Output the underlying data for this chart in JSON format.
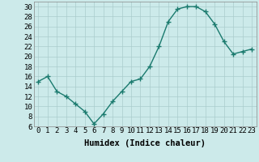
{
  "x": [
    0,
    1,
    2,
    3,
    4,
    5,
    6,
    7,
    8,
    9,
    10,
    11,
    12,
    13,
    14,
    15,
    16,
    17,
    18,
    19,
    20,
    21,
    22,
    23
  ],
  "y": [
    15,
    16,
    13,
    12,
    10.5,
    9,
    6.5,
    8.5,
    11,
    13,
    15,
    15.5,
    18,
    22,
    27,
    29.5,
    30,
    30,
    29,
    26.5,
    23,
    20.5,
    21,
    21.5
  ],
  "line_color": "#1a7a6e",
  "marker_color": "#1a7a6e",
  "bg_color": "#cceaea",
  "grid_color": "#aacccc",
  "xlabel": "Humidex (Indice chaleur)",
  "xlim": [
    -0.5,
    23.5
  ],
  "ylim": [
    6,
    31
  ],
  "yticks": [
    6,
    8,
    10,
    12,
    14,
    16,
    18,
    20,
    22,
    24,
    26,
    28,
    30
  ],
  "xticks": [
    0,
    1,
    2,
    3,
    4,
    5,
    6,
    7,
    8,
    9,
    10,
    11,
    12,
    13,
    14,
    15,
    16,
    17,
    18,
    19,
    20,
    21,
    22,
    23
  ],
  "xlabel_fontsize": 7.5,
  "tick_fontsize": 6.5
}
